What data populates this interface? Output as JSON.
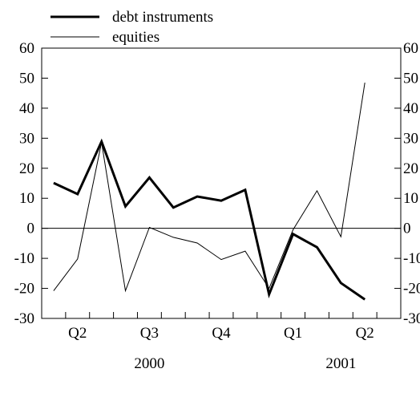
{
  "chart_data": {
    "type": "line",
    "x": [
      "2000-04",
      "2000-05",
      "2000-06",
      "2000-07",
      "2000-08",
      "2000-09",
      "2000-10",
      "2000-11",
      "2000-12",
      "2001-01",
      "2001-02",
      "2001-03",
      "2001-04",
      "2001-05",
      "2001-06"
    ],
    "series": [
      {
        "name": "debt instruments",
        "values": [
          15.1,
          11.4,
          28.9,
          7.3,
          16.9,
          6.9,
          10.6,
          9.2,
          12.8,
          -22.0,
          -1.9,
          -6.3,
          -18.2,
          -23.7,
          null
        ],
        "color": "#000000",
        "weight": "thick"
      },
      {
        "name": "equities",
        "values": [
          -20.8,
          -10.2,
          28.6,
          -20.8,
          0.3,
          -3.0,
          -4.9,
          -10.4,
          -7.6,
          -20.0,
          -0.5,
          12.5,
          -2.8,
          48.5,
          null
        ],
        "color": "#000000",
        "weight": "thin"
      }
    ],
    "ylim": [
      -30,
      60
    ],
    "yticks": [
      "60",
      "50",
      "40",
      "30",
      "20",
      "10",
      "0",
      "-10",
      "-20",
      "-30"
    ],
    "quarters": [
      "Q2",
      "Q3",
      "Q4",
      "Q1",
      "Q2"
    ],
    "years": [
      "2000",
      "2001"
    ],
    "grid": false,
    "legend_placement": "top-left"
  }
}
